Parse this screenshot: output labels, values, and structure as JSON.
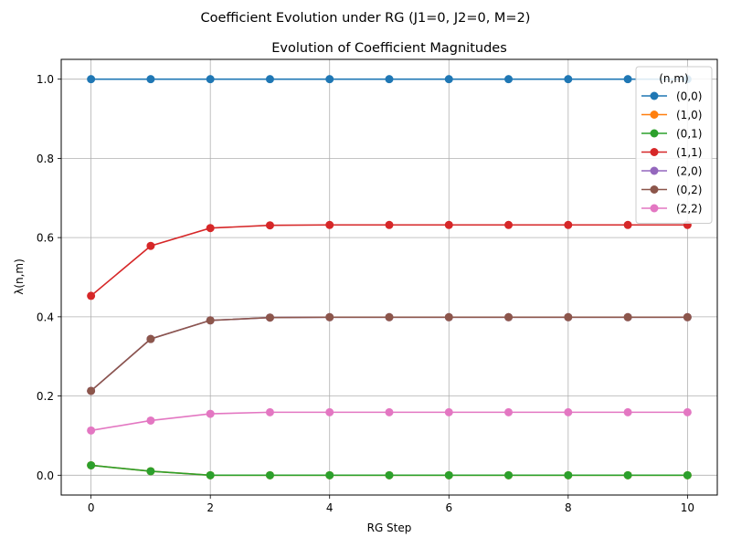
{
  "chart_data": {
    "type": "line",
    "suptitle": "Coefficient Evolution under RG (J1=0, J2=0, M=2)",
    "title": "Evolution of Coefficient Magnitudes",
    "xlabel": "RG Step",
    "ylabel": "λ(n,m)",
    "xlim": [
      -0.5,
      10.5
    ],
    "ylim": [
      -0.05,
      1.05
    ],
    "xticks": [
      0,
      2,
      4,
      6,
      8,
      10
    ],
    "yticks": [
      0.0,
      0.2,
      0.4,
      0.6,
      0.8,
      1.0
    ],
    "xtick_labels": [
      "0",
      "2",
      "4",
      "6",
      "8",
      "10"
    ],
    "ytick_labels": [
      "0.0",
      "0.2",
      "0.4",
      "0.6",
      "0.8",
      "1.0"
    ],
    "grid": true,
    "legend": {
      "title": "(n,m)",
      "placement": "top-right"
    },
    "x": [
      0,
      1,
      2,
      3,
      4,
      5,
      6,
      7,
      8,
      9,
      10
    ],
    "series": [
      {
        "name": "(0,0)",
        "color": "#1f77b4",
        "values": [
          1.0,
          1.0,
          1.0,
          1.0,
          1.0,
          1.0,
          1.0,
          1.0,
          1.0,
          1.0,
          1.0
        ]
      },
      {
        "name": "(1,0)",
        "color": "#ff7f0e",
        "values": [
          0.025,
          0.01,
          0.0,
          0.0,
          0.0,
          0.0,
          0.0,
          0.0,
          0.0,
          0.0,
          0.0
        ]
      },
      {
        "name": "(0,1)",
        "color": "#2ca02c",
        "values": [
          0.025,
          0.01,
          0.0,
          0.0,
          0.0,
          0.0,
          0.0,
          0.0,
          0.0,
          0.0,
          0.0
        ]
      },
      {
        "name": "(1,1)",
        "color": "#d62728",
        "values": [
          0.453,
          0.579,
          0.624,
          0.631,
          0.632,
          0.632,
          0.632,
          0.632,
          0.632,
          0.632,
          0.632
        ]
      },
      {
        "name": "(2,0)",
        "color": "#9467bd",
        "values": [
          0.213,
          0.344,
          0.391,
          0.398,
          0.399,
          0.399,
          0.399,
          0.399,
          0.399,
          0.399,
          0.399
        ]
      },
      {
        "name": "(0,2)",
        "color": "#8c564b",
        "values": [
          0.213,
          0.344,
          0.391,
          0.398,
          0.399,
          0.399,
          0.399,
          0.399,
          0.399,
          0.399,
          0.399
        ]
      },
      {
        "name": "(2,2)",
        "color": "#e377c2",
        "values": [
          0.113,
          0.138,
          0.155,
          0.159,
          0.159,
          0.159,
          0.159,
          0.159,
          0.159,
          0.159,
          0.159
        ]
      }
    ]
  }
}
